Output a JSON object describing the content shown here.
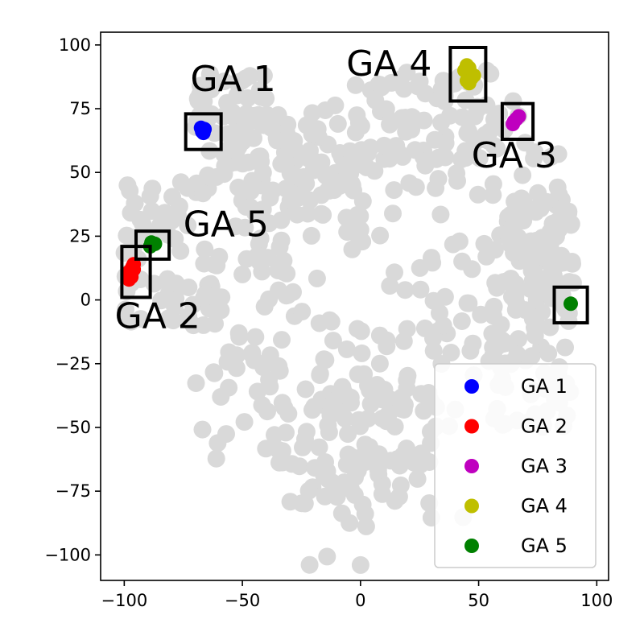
{
  "chart_data": {
    "type": "scatter",
    "title": "",
    "xlabel": "",
    "ylabel": "",
    "xlim": [
      -110,
      105
    ],
    "ylim": [
      -110,
      105
    ],
    "grid": false,
    "legend_position": "bottom-right",
    "x_ticks": [
      -100,
      -50,
      0,
      50,
      100
    ],
    "y_ticks": [
      -100,
      -75,
      -50,
      -25,
      0,
      25,
      50,
      75,
      100
    ],
    "x_tick_labels": [
      "−100",
      "−50",
      "0",
      "50",
      "100"
    ],
    "y_tick_labels": [
      "−100",
      "−75",
      "−50",
      "−25",
      "0",
      "25",
      "50",
      "75",
      "100"
    ],
    "background_color": "#d9d9d9",
    "background_regions": [
      {
        "x": [
          -40,
          20
        ],
        "y": [
          -105,
          85
        ]
      },
      {
        "x": [
          -20,
          45
        ],
        "y": [
          -90,
          60
        ]
      },
      {
        "x": [
          30,
          85
        ],
        "y": [
          -30,
          80
        ]
      },
      {
        "x": [
          0,
          60
        ],
        "y": [
          55,
          90
        ]
      },
      {
        "x": [
          -70,
          -30
        ],
        "y": [
          -65,
          40
        ]
      },
      {
        "x": [
          -100,
          -60
        ],
        "y": [
          -10,
          50
        ]
      },
      {
        "x": [
          -70,
          -40
        ],
        "y": [
          40,
          90
        ]
      },
      {
        "x": [
          -50,
          0
        ],
        "y": [
          30,
          75
        ]
      },
      {
        "x": [
          55,
          90
        ],
        "y": [
          -50,
          10
        ]
      },
      {
        "x": [
          60,
          90
        ],
        "y": [
          0,
          40
        ]
      },
      {
        "x": [
          -30,
          30
        ],
        "y": [
          -80,
          -30
        ]
      }
    ],
    "series": [
      {
        "name": "GA 1",
        "color": "#0000ff",
        "points": [
          [
            -67,
            66
          ],
          [
            -66,
            67
          ],
          [
            -67.5,
            67.5
          ],
          [
            -66.5,
            65.5
          ]
        ]
      },
      {
        "name": "GA 2",
        "color": "#ff0000",
        "points": [
          [
            -98,
            8
          ],
          [
            -97.5,
            10
          ],
          [
            -97,
            12
          ],
          [
            -96.5,
            13
          ],
          [
            -96,
            14
          ],
          [
            -97,
            9
          ],
          [
            -98,
            11
          ],
          [
            -96,
            12
          ]
        ]
      },
      {
        "name": "GA 3",
        "color": "#bf00bf",
        "points": [
          [
            65,
            70
          ],
          [
            66,
            71
          ],
          [
            67,
            72
          ],
          [
            64.5,
            69
          ]
        ]
      },
      {
        "name": "GA 4",
        "color": "#bfbf00",
        "points": [
          [
            44,
            90
          ],
          [
            45,
            92
          ],
          [
            46,
            89
          ],
          [
            47,
            87
          ],
          [
            46,
            85
          ],
          [
            48,
            88
          ],
          [
            45,
            86
          ],
          [
            46,
            91
          ]
        ]
      },
      {
        "name": "GA 5",
        "color": "#008000",
        "points": [
          [
            -89,
            21
          ],
          [
            -87,
            22
          ],
          [
            -88.5,
            22.5
          ],
          [
            89,
            -1.5
          ]
        ]
      }
    ],
    "annotations": [
      {
        "text": "GA 1",
        "x": -72,
        "y": 82
      },
      {
        "text": "GA 2",
        "x": -104,
        "y": -11
      },
      {
        "text": "GA 3",
        "x": 47,
        "y": 52
      },
      {
        "text": "GA 4",
        "x": -6,
        "y": 88
      },
      {
        "text": "GA 5",
        "x": -75,
        "y": 25
      }
    ],
    "highlight_boxes": [
      {
        "x": [
          -74,
          -59
        ],
        "y": [
          59,
          73
        ]
      },
      {
        "x": [
          -101,
          -89
        ],
        "y": [
          1,
          21
        ]
      },
      {
        "x": [
          60,
          73
        ],
        "y": [
          63,
          77
        ]
      },
      {
        "x": [
          38,
          53
        ],
        "y": [
          78,
          99
        ]
      },
      {
        "x": [
          -95,
          -81
        ],
        "y": [
          16,
          27
        ]
      },
      {
        "x": [
          82,
          96
        ],
        "y": [
          -9,
          5
        ]
      }
    ]
  }
}
